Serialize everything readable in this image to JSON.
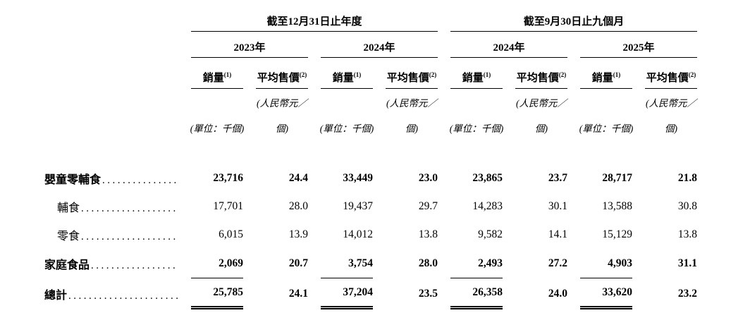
{
  "table": {
    "period_headers": [
      "截至12月31日止年度",
      "截至9月30日止九個月"
    ],
    "year_headers": [
      "2023年",
      "2024年",
      "2024年",
      "2025年"
    ],
    "metric_headers": [
      {
        "label": "銷量",
        "sup": "(1)"
      },
      {
        "label": "平均售價",
        "sup": "(2)"
      }
    ],
    "units": {
      "volume": "(單位：千個)",
      "asp_line1": "(人民幣元／",
      "asp_line2": "個)"
    },
    "rows": [
      {
        "label": "嬰童零輔食",
        "values": [
          "23,716",
          "24.4",
          "33,449",
          "23.0",
          "23,865",
          "23.7",
          "28,717",
          "21.8"
        ]
      },
      {
        "label": "輔食",
        "values": [
          "17,701",
          "28.0",
          "19,437",
          "29.7",
          "14,283",
          "30.1",
          "13,588",
          "30.8"
        ]
      },
      {
        "label": "零食",
        "values": [
          "6,015",
          "13.9",
          "14,012",
          "13.8",
          "9,582",
          "14.1",
          "15,129",
          "13.8"
        ]
      },
      {
        "label": "家庭食品",
        "values": [
          "2,069",
          "20.7",
          "3,754",
          "28.0",
          "2,493",
          "27.2",
          "4,903",
          "31.1"
        ]
      },
      {
        "label": "總計",
        "values": [
          "25,785",
          "24.1",
          "37,204",
          "23.5",
          "26,358",
          "24.0",
          "33,620",
          "23.2"
        ]
      }
    ]
  }
}
